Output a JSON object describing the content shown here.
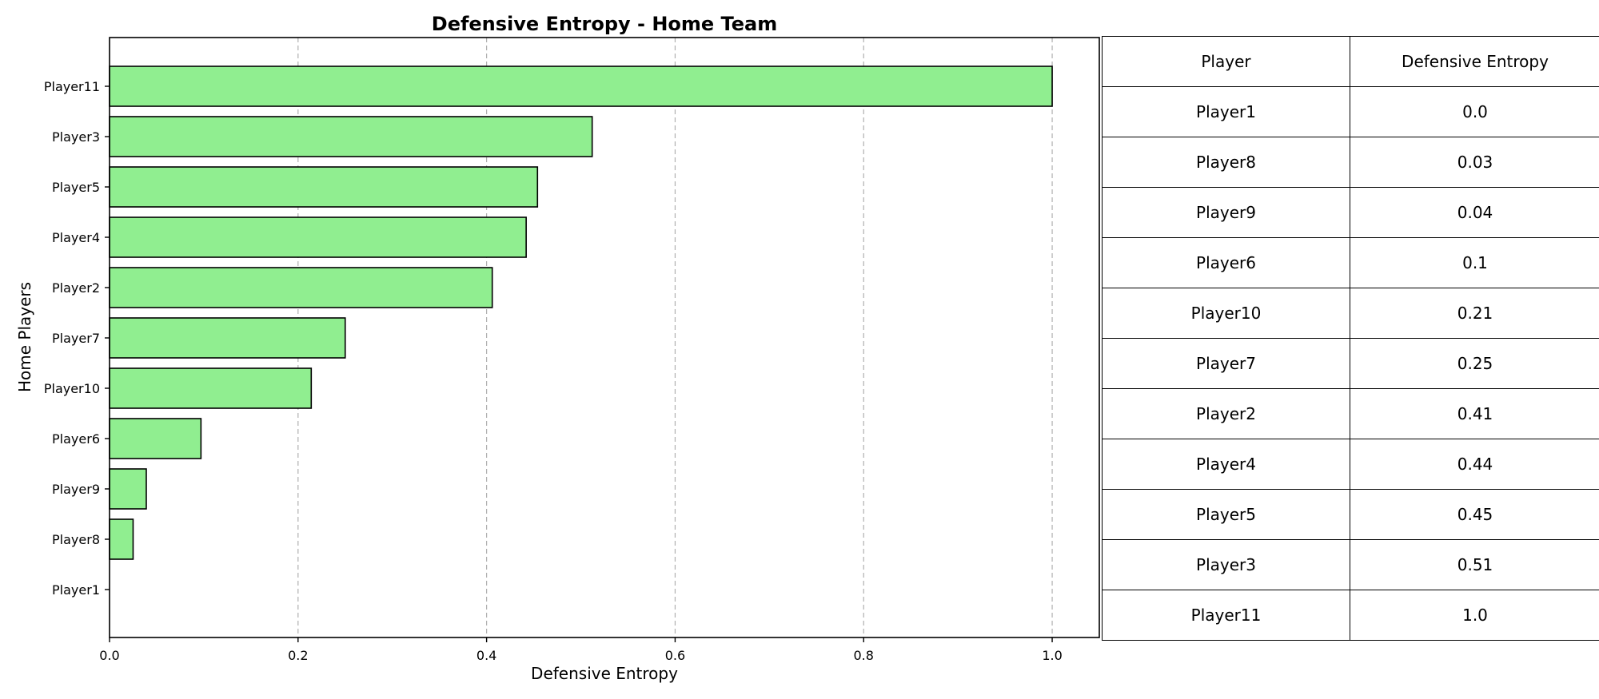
{
  "chart_data": {
    "type": "bar",
    "orientation": "horizontal",
    "title": "Defensive Entropy - Home Team",
    "xlabel": "Defensive Entropy",
    "ylabel": "Home Players",
    "categories": [
      "Player1",
      "Player8",
      "Player9",
      "Player6",
      "Player10",
      "Player7",
      "Player2",
      "Player4",
      "Player5",
      "Player3",
      "Player11"
    ],
    "values": [
      0.0,
      0.025,
      0.039,
      0.097,
      0.214,
      0.25,
      0.406,
      0.442,
      0.454,
      0.512,
      1.0
    ],
    "xlim": [
      0,
      1.05
    ],
    "xticks": [
      "0.0",
      "0.2",
      "0.4",
      "0.6",
      "0.8",
      "1.0"
    ],
    "grid": "x-dashed",
    "bar_color": "#90ee90",
    "edge_color": "#000000"
  },
  "table": {
    "headers": [
      "Player",
      "Defensive Entropy"
    ],
    "rows": [
      [
        "Player1",
        "0.0"
      ],
      [
        "Player8",
        "0.03"
      ],
      [
        "Player9",
        "0.04"
      ],
      [
        "Player6",
        "0.1"
      ],
      [
        "Player10",
        "0.21"
      ],
      [
        "Player7",
        "0.25"
      ],
      [
        "Player2",
        "0.41"
      ],
      [
        "Player4",
        "0.44"
      ],
      [
        "Player5",
        "0.45"
      ],
      [
        "Player3",
        "0.51"
      ],
      [
        "Player11",
        "1.0"
      ]
    ]
  }
}
